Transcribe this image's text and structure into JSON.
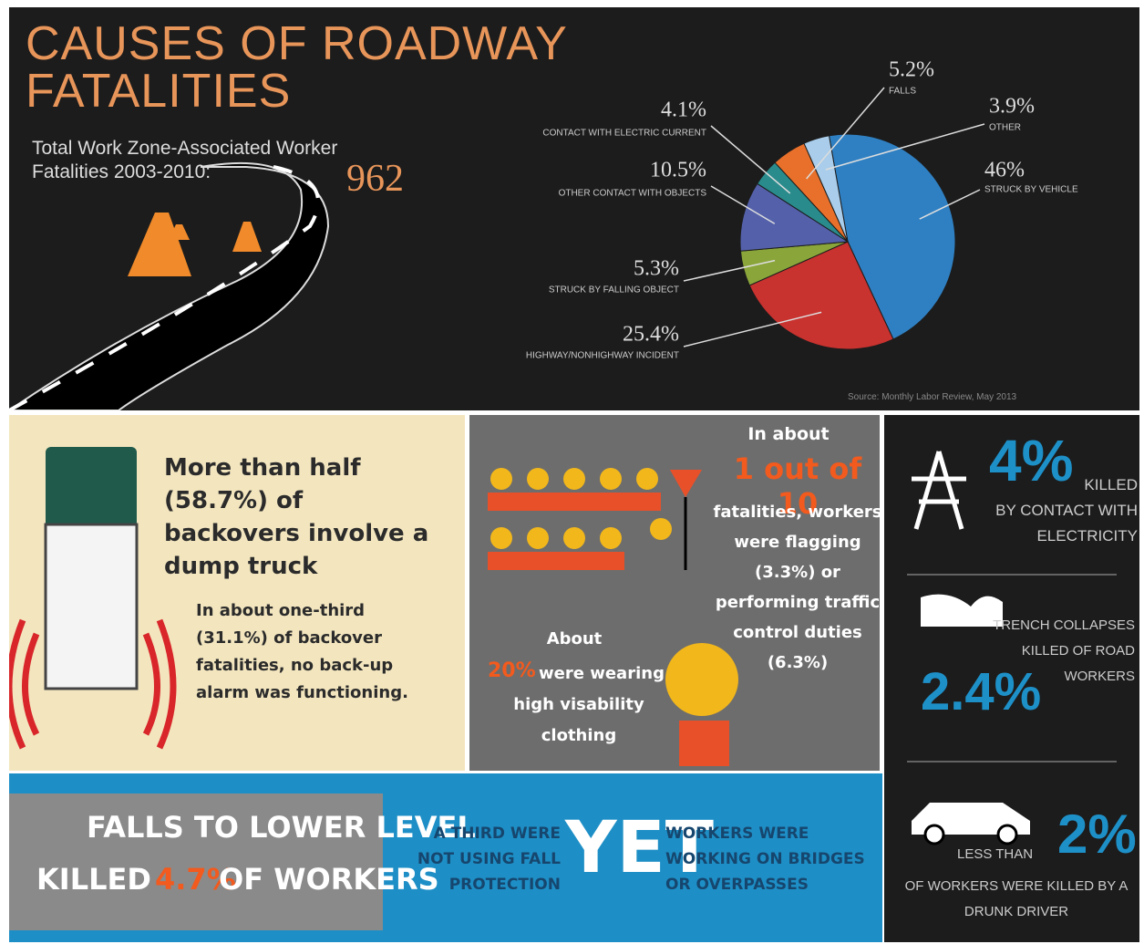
{
  "header": {
    "title": "CAUSES OF ROADWAY FATALITIES",
    "subtitle": "Total Work Zone-Associated Worker Fatalities 2003-2010:",
    "total": 962,
    "source": "Source: Monthly Labor Review, May 2013"
  },
  "chart_data": {
    "type": "pie",
    "categories": [
      "STRUCK BY VEHICLE",
      "HIGHWAY/NONHIGHWAY INCIDENT",
      "STRUCK BY FALLING OBJECT",
      "OTHER CONTACT WITH OBJECTS",
      "CONTACT WITH ELECTRIC CURRENT",
      "FALLS",
      "OTHER"
    ],
    "values": [
      46,
      25.4,
      5.3,
      10.5,
      4.1,
      5.2,
      3.9
    ],
    "value_labels": [
      "46%",
      "25.4%",
      "5.3%",
      "10.5%",
      "4.1%",
      "5.2%",
      "3.9%"
    ],
    "colors": [
      "#2f80c3",
      "#c8322f",
      "#8aa63a",
      "#5461aa",
      "#2a8b8c",
      "#e8702a",
      "#a9cdea"
    ]
  },
  "backovers": {
    "headline": "More than half (58.7%) of backovers involve a dump truck",
    "detail": "In about one-third (31.1%) of backover fatalities, no back-up alarm was functioning."
  },
  "flagging": {
    "intro": "In about",
    "highlight": "1 out of 10",
    "text": "fatalities, workers were flagging (3.3%) or performing traffic control duties (6.3%)"
  },
  "visibility": {
    "intro": "About",
    "highlight": "20%",
    "text": "were wearing high visability clothing"
  },
  "side": {
    "electricity": {
      "value": "4%",
      "text": "KILLED BY CONTACT WITH ELECTRICITY"
    },
    "trench": {
      "text": "TRENCH COLLAPSES KILLED OF ROAD WORKERS",
      "value": "2.4%"
    },
    "drunk": {
      "prefix": "LESS THAN",
      "value": "2%",
      "text": "OF WORKERS WERE KILLED BY A DRUNK DRIVER"
    }
  },
  "falls": {
    "line1": "FALLS TO LOWER LEVEL",
    "killed": "KILLED",
    "value": "4.7%",
    "suffix": "OF WORKERS",
    "left": "A THIRD WERE NOT USING FALL PROTECTION",
    "yet": "YET",
    "right": "WORKERS WERE WORKING ON BRIDGES OR OVERPASSES"
  }
}
